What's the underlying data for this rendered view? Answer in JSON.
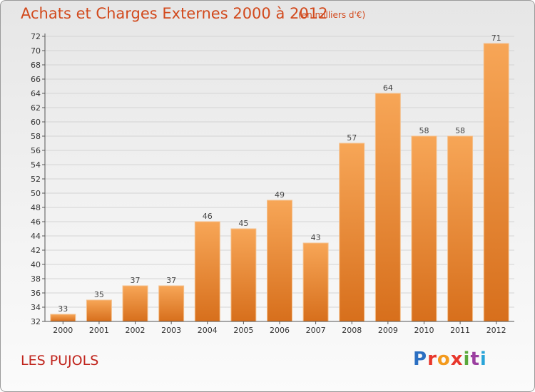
{
  "header": {
    "title": "Achats et Charges Externes 2000 à 2012",
    "subtitle": "(en milliers d'€)"
  },
  "footer": {
    "commune": "LES PUJOLS",
    "logo_text": "Proxiti"
  },
  "colors": {
    "title": "#d2491c",
    "commune": "#c0241c",
    "bar_light": "#f7a657",
    "bar_dark": "#d76f1c"
  },
  "chart_data": {
    "type": "bar",
    "title": "Achats et Charges Externes 2000 à 2012",
    "subtitle": "(en milliers d'€)",
    "categories": [
      "2000",
      "2001",
      "2002",
      "2003",
      "2004",
      "2005",
      "2006",
      "2007",
      "2008",
      "2009",
      "2010",
      "2011",
      "2012"
    ],
    "values": [
      33,
      35,
      37,
      37,
      46,
      45,
      49,
      43,
      57,
      64,
      58,
      58,
      71
    ],
    "ylim": [
      32,
      72
    ],
    "yticks": [
      32,
      34,
      36,
      38,
      40,
      42,
      44,
      46,
      48,
      50,
      52,
      54,
      56,
      58,
      60,
      62,
      64,
      66,
      68,
      70,
      72
    ],
    "grid": true,
    "legend": "none"
  }
}
